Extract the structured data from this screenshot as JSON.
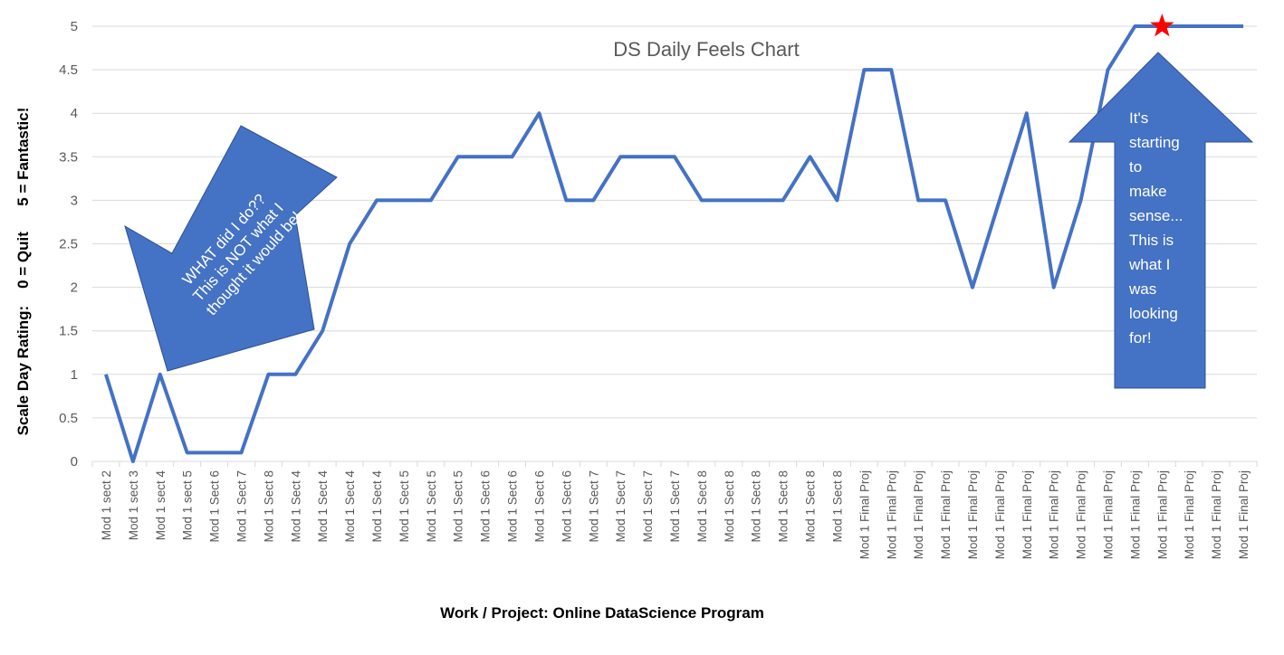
{
  "chart_data": {
    "type": "line",
    "title": "DS Daily Feels Chart",
    "xlabel": "Work / Project: Online DataScience Program",
    "ylabel": "Scale Day Rating:    0 = Quit      5 = Fantastic!",
    "ylim": [
      0,
      5
    ],
    "yticks": [
      "0",
      "0.5",
      "1",
      "1.5",
      "2",
      "2.5",
      "3",
      "3.5",
      "4",
      "4.5",
      "5"
    ],
    "grid": true,
    "legend": "none",
    "line_color": "#4472C4",
    "marker_color": "#FF0000",
    "marker_index": 39,
    "categories": [
      "Mod 1 sect 2",
      "Mod 1 sect 3",
      "Mod 1 sect 4",
      "Mod 1 sect 5",
      "Mod 1 Sect 6",
      "Mod 1 Sect 7",
      "Mod 1 Sect 8",
      "Mod 1 Sect 4",
      "Mod 1 Sect 4",
      "Mod 1 Sect 4",
      "Mod 1 Sect 4",
      "Mod 1 Sect 5",
      "Mod 1 Sect 5",
      "Mod 1 Sect 5",
      "Mod 1 Sect 6",
      "Mod 1 Sect 6",
      "Mod 1 Sect 6",
      "Mod 1 Sect 6",
      "Mod 1 Sect 7",
      "Mod 1 Sect 7",
      "Mod 1 Sect 7",
      "Mod 1 Sect 7",
      "Mod 1 Sect 8",
      "Mod 1 Sect 8",
      "Mod 1 Sect 8",
      "Mod 1 Sect 8",
      "Mod 1 Sect 8",
      "Mod 1 Sect 8",
      "Mod 1 Final Proj",
      "Mod 1 Final Proj",
      "Mod 1 Final Proj",
      "Mod 1 Final Proj",
      "Mod 1 Final Proj",
      "Mod 1 Final Proj",
      "Mod 1 Final Proj",
      "Mod 1 Final Proj",
      "Mod 1 Final Proj",
      "Mod 1 Final Proj",
      "Mod 1 Final Proj",
      "Mod 1 Final Proj",
      "Mod 1 Final Proj",
      "Mod 1 Final Proj",
      "Mod 1 Final Proj"
    ],
    "values": [
      1,
      0,
      1,
      0.1,
      0.1,
      0.1,
      1,
      1,
      1.5,
      2.5,
      3,
      3,
      3,
      3.5,
      3.5,
      3.5,
      4,
      3,
      3,
      3.5,
      3.5,
      3.5,
      3,
      3,
      3,
      3,
      3.5,
      3,
      4.5,
      4.5,
      3,
      3,
      2,
      3,
      4,
      2,
      3,
      4.5,
      5,
      5,
      5,
      5,
      5
    ],
    "annotations": [
      {
        "text_lines": [
          "WHAT did I do??",
          "This is NOT what I",
          "thought it would be!"
        ],
        "color": "#4472C4"
      },
      {
        "text_lines": [
          "It's",
          "starting",
          "to",
          "make",
          "sense...",
          "This is",
          "what I",
          "was",
          "looking",
          "for!"
        ],
        "color": "#4472C4"
      }
    ]
  }
}
